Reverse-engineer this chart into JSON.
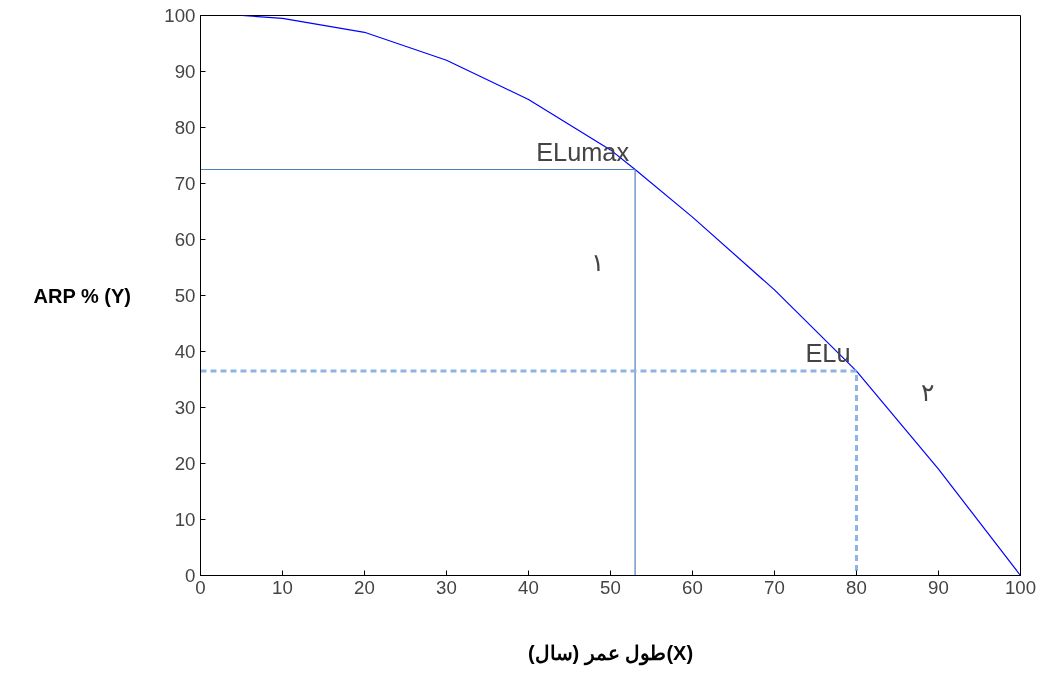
{
  "chart_data": {
    "type": "line",
    "xlabel": "طول عمر (سال)(X)",
    "ylabel": "ARP % (Y)",
    "series": [
      {
        "color": "#0000ff",
        "x": [
          5,
          10,
          20,
          30,
          40,
          50,
          53,
          60,
          70,
          80,
          90,
          100
        ],
        "values": [
          100,
          99.5,
          97,
          92,
          85,
          76,
          72.5,
          64,
          51,
          36.5,
          19,
          0
        ]
      },
      {
        "color": "#4f81bd",
        "x": [
          0,
          53,
          53
        ],
        "values": [
          72.5,
          72.5,
          0
        ]
      },
      {
        "color": "#8db4e2",
        "line_style": "dashed",
        "x": [
          0,
          80,
          80
        ],
        "values": [
          36.5,
          36.5,
          0
        ]
      }
    ],
    "xlim": [
      0,
      100
    ],
    "ylim": [
      0,
      100
    ],
    "xticks": [
      0,
      10,
      20,
      30,
      40,
      50,
      60,
      70,
      80,
      90,
      100
    ],
    "yticks": [
      0,
      10,
      20,
      30,
      40,
      50,
      60,
      70,
      80,
      90,
      100
    ],
    "grid": false,
    "annotations": [
      {
        "text": "ELumax",
        "x": 53,
        "y": 72.5
      },
      {
        "text": "ELu",
        "x": 80,
        "y": 36.5
      },
      "١",
      "٢"
    ]
  }
}
